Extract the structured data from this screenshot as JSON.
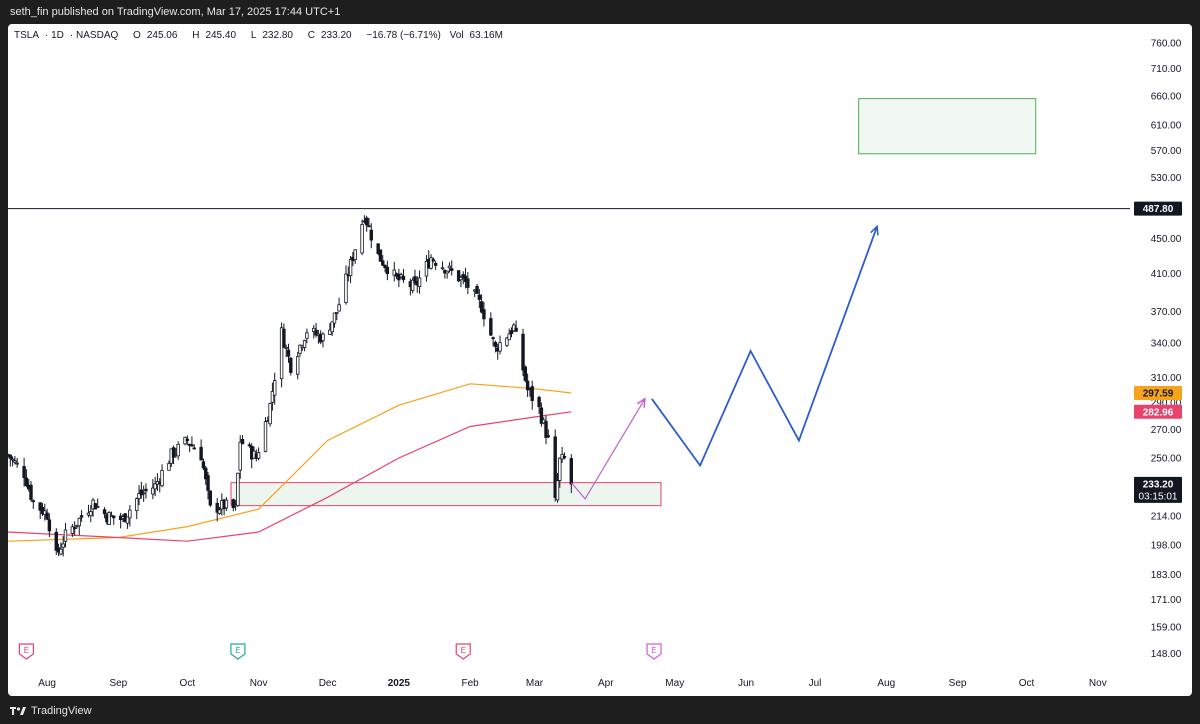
{
  "header": {
    "published_by": "seth_fin published on TradingView.com, Mar 17, 2025 17:44 UTC+1"
  },
  "footer": {
    "brand": "TradingView"
  },
  "symbol_info": {
    "symbol": "TSLA",
    "interval": "1D",
    "exchange": "NASDAQ",
    "open_label": "O",
    "open": "245.06",
    "high_label": "H",
    "high": "245.40",
    "low_label": "L",
    "low": "232.80",
    "close_label": "C",
    "close": "233.20",
    "change": "−16.78 (−6.71%)",
    "volume_label": "Vol",
    "volume": "63.16M"
  },
  "chart_data": {
    "type": "candlestick",
    "y_scale": "log",
    "ylim": [
      142,
      800
    ],
    "x_start": "2024-07-15",
    "x_end": "2025-11-15",
    "y_ticks": [
      760,
      710,
      660,
      610,
      570,
      530,
      487.8,
      450,
      410,
      370,
      340,
      310,
      290,
      270,
      250,
      230,
      214,
      198,
      183,
      171,
      159,
      148
    ],
    "y_tick_labels": [
      "760.00",
      "710.00",
      "660.00",
      "610.00",
      "570.00",
      "530.00",
      "487.80",
      "450.00",
      "410.00",
      "370.00",
      "340.00",
      "310.00",
      "290.00",
      "270.00",
      "250.00",
      "230.00",
      "214.00",
      "198.00",
      "183.00",
      "171.00",
      "159.00",
      "148.00"
    ],
    "x_ticks": [
      {
        "date": "2024-08-01",
        "label": "Aug"
      },
      {
        "date": "2024-09-01",
        "label": "Sep"
      },
      {
        "date": "2024-10-01",
        "label": "Oct"
      },
      {
        "date": "2024-11-01",
        "label": "Nov"
      },
      {
        "date": "2024-12-01",
        "label": "Dec"
      },
      {
        "date": "2025-01-01",
        "label": "2025",
        "bold": true
      },
      {
        "date": "2025-02-01",
        "label": "Feb"
      },
      {
        "date": "2025-03-01",
        "label": "Mar"
      },
      {
        "date": "2025-04-01",
        "label": "Apr"
      },
      {
        "date": "2025-05-01",
        "label": "May"
      },
      {
        "date": "2025-06-01",
        "label": "Jun"
      },
      {
        "date": "2025-07-01",
        "label": "Jul"
      },
      {
        "date": "2025-08-01",
        "label": "Aug"
      },
      {
        "date": "2025-09-01",
        "label": "Sep"
      },
      {
        "date": "2025-10-01",
        "label": "Oct"
      },
      {
        "date": "2025-11-01",
        "label": "Nov"
      }
    ],
    "candle_anchors": [
      [
        "2024-07-15",
        252
      ],
      [
        "2024-07-22",
        240
      ],
      [
        "2024-07-26",
        222
      ],
      [
        "2024-08-01",
        215
      ],
      [
        "2024-08-05",
        192
      ],
      [
        "2024-08-09",
        203
      ],
      [
        "2024-08-15",
        212
      ],
      [
        "2024-08-21",
        222
      ],
      [
        "2024-08-27",
        214
      ],
      [
        "2024-09-03",
        212
      ],
      [
        "2024-09-10",
        226
      ],
      [
        "2024-09-17",
        232
      ],
      [
        "2024-09-24",
        252
      ],
      [
        "2024-10-01",
        262
      ],
      [
        "2024-10-07",
        252
      ],
      [
        "2024-10-11",
        218
      ],
      [
        "2024-10-17",
        220
      ],
      [
        "2024-10-22",
        218
      ],
      [
        "2024-10-24",
        262
      ],
      [
        "2024-10-31",
        250
      ],
      [
        "2024-11-06",
        288
      ],
      [
        "2024-11-11",
        350
      ],
      [
        "2024-11-15",
        320
      ],
      [
        "2024-11-22",
        352
      ],
      [
        "2024-11-29",
        345
      ],
      [
        "2024-12-05",
        370
      ],
      [
        "2024-12-11",
        420
      ],
      [
        "2024-12-17",
        480
      ],
      [
        "2024-12-23",
        430
      ],
      [
        "2024-12-31",
        404
      ],
      [
        "2025-01-08",
        395
      ],
      [
        "2025-01-15",
        428
      ],
      [
        "2025-01-22",
        415
      ],
      [
        "2025-01-30",
        400
      ],
      [
        "2025-02-06",
        375
      ],
      [
        "2025-02-12",
        335
      ],
      [
        "2025-02-20",
        355
      ],
      [
        "2025-02-26",
        300
      ],
      [
        "2025-03-03",
        285
      ],
      [
        "2025-03-07",
        262
      ],
      [
        "2025-03-10",
        222
      ],
      [
        "2025-03-12",
        248
      ],
      [
        "2025-03-14",
        249
      ],
      [
        "2025-03-17",
        233.2
      ]
    ],
    "moving_averages": [
      {
        "color": "#f7a21b",
        "points": [
          [
            "2024-07-15",
            200
          ],
          [
            "2024-09-01",
            202
          ],
          [
            "2024-10-01",
            208
          ],
          [
            "2024-11-01",
            218
          ],
          [
            "2024-12-01",
            262
          ],
          [
            "2025-01-01",
            288
          ],
          [
            "2025-02-01",
            305
          ],
          [
            "2025-03-01",
            301
          ],
          [
            "2025-03-17",
            297.59
          ]
        ],
        "last_label": "297.59"
      },
      {
        "color": "#e8436c",
        "points": [
          [
            "2024-07-15",
            205
          ],
          [
            "2024-09-01",
            202
          ],
          [
            "2024-10-01",
            200
          ],
          [
            "2024-11-01",
            205
          ],
          [
            "2024-12-01",
            225
          ],
          [
            "2025-01-01",
            250
          ],
          [
            "2025-02-01",
            272
          ],
          [
            "2025-03-01",
            279
          ],
          [
            "2025-03-17",
            282.96
          ]
        ],
        "last_label": "282.96"
      }
    ],
    "horizontal_line": {
      "price": 487.8,
      "label": "487.80"
    },
    "last_price": {
      "price": 233.2,
      "label": "233.20",
      "countdown": "03:15:01"
    },
    "zones": [
      {
        "from": "2024-10-20",
        "to": "2025-04-25",
        "top": 234,
        "bottom": 220,
        "border": "#e8436c",
        "fill": "#edf6ee"
      },
      {
        "from": "2025-07-20",
        "to": "2025-10-05",
        "top": 655,
        "bottom": 565,
        "border": "#4caf50",
        "fill": "#f1f7f2"
      }
    ],
    "projection_purple": [
      [
        "2025-03-17",
        234
      ],
      [
        "2025-03-23",
        224
      ],
      [
        "2025-04-18",
        293
      ]
    ],
    "projection_blue": [
      [
        "2025-04-21",
        293
      ],
      [
        "2025-05-12",
        245
      ],
      [
        "2025-06-03",
        333
      ],
      [
        "2025-06-24",
        262
      ],
      [
        "2025-07-28",
        465
      ]
    ],
    "earnings_markers": [
      {
        "date": "2024-07-23",
        "label": "E",
        "color": "#e8436c"
      },
      {
        "date": "2024-10-23",
        "label": "E",
        "color": "#26a69a"
      },
      {
        "date": "2025-01-29",
        "label": "E",
        "color": "#e8436c"
      },
      {
        "date": "2025-04-22",
        "label": "E",
        "color": "#d05cd9"
      }
    ]
  }
}
